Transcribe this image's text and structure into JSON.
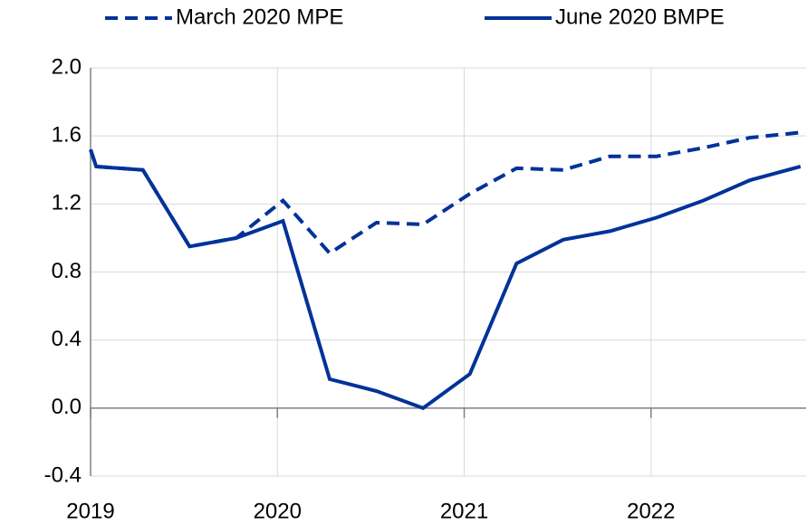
{
  "chart_data": {
    "type": "line",
    "x": [
      2019.0,
      2019.03,
      2019.28,
      2019.53,
      2019.78,
      2020.03,
      2020.28,
      2020.53,
      2020.78,
      2021.03,
      2021.28,
      2021.53,
      2021.78,
      2022.03,
      2022.28,
      2022.53,
      2022.8
    ],
    "series": [
      {
        "name": "March 2020 MPE",
        "color": "#003299",
        "dash": true,
        "values": [
          1.52,
          1.42,
          1.4,
          0.95,
          1.0,
          1.22,
          0.91,
          1.09,
          1.08,
          1.26,
          1.41,
          1.4,
          1.48,
          1.48,
          1.53,
          1.59,
          1.62
        ]
      },
      {
        "name": "June 2020 BMPE",
        "color": "#003299",
        "dash": false,
        "values": [
          1.52,
          1.42,
          1.4,
          0.95,
          1.0,
          1.1,
          0.17,
          0.1,
          0.0,
          0.2,
          0.85,
          0.99,
          1.04,
          1.12,
          1.22,
          1.34,
          1.42
        ]
      }
    ],
    "xlim": [
      2019,
      2022.83
    ],
    "xticks": [
      2019,
      2020,
      2021,
      2022
    ],
    "ylim": [
      -0.4,
      2.0
    ],
    "yticks": [
      -0.4,
      {
        "value": 0,
        "label": "0.0"
      },
      0.4,
      0.8,
      1.2,
      1.6,
      {
        "value": 2.0,
        "label": "2.0"
      }
    ],
    "grid": true
  }
}
